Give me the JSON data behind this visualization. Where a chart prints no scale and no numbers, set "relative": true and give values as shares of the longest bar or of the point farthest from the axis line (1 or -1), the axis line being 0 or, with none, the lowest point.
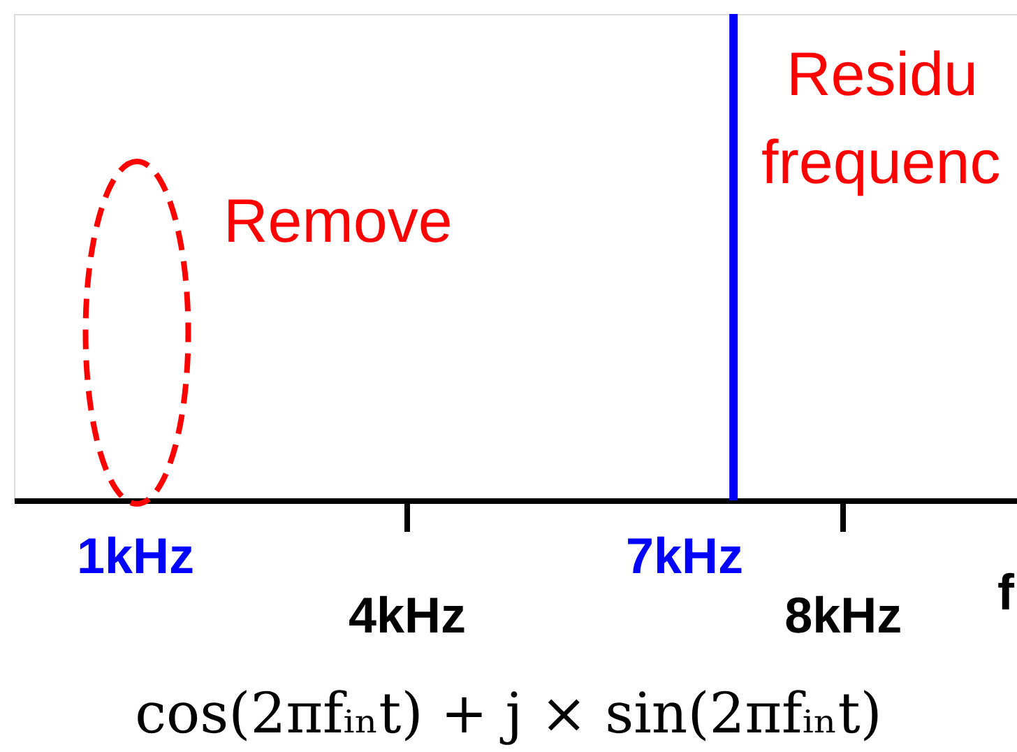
{
  "chart_data": {
    "type": "bar",
    "relative": true,
    "x": [
      7
    ],
    "series": [
      {
        "color": "#0000ff",
        "values": [
          1
        ]
      }
    ],
    "xlim": [
      0.4,
      9.6
    ],
    "xticks": [
      {
        "value": 4,
        "label": "4kHz"
      },
      {
        "value": 8,
        "label": "8kHz"
      }
    ],
    "xlabel": "f",
    "grid": false,
    "annotations": [
      "1kHz",
      "7kHz",
      "Remove",
      "Residu",
      "frequenc",
      "cos(2πfᵢₙt) + j × sin(2πfᵢₙt)"
    ]
  }
}
